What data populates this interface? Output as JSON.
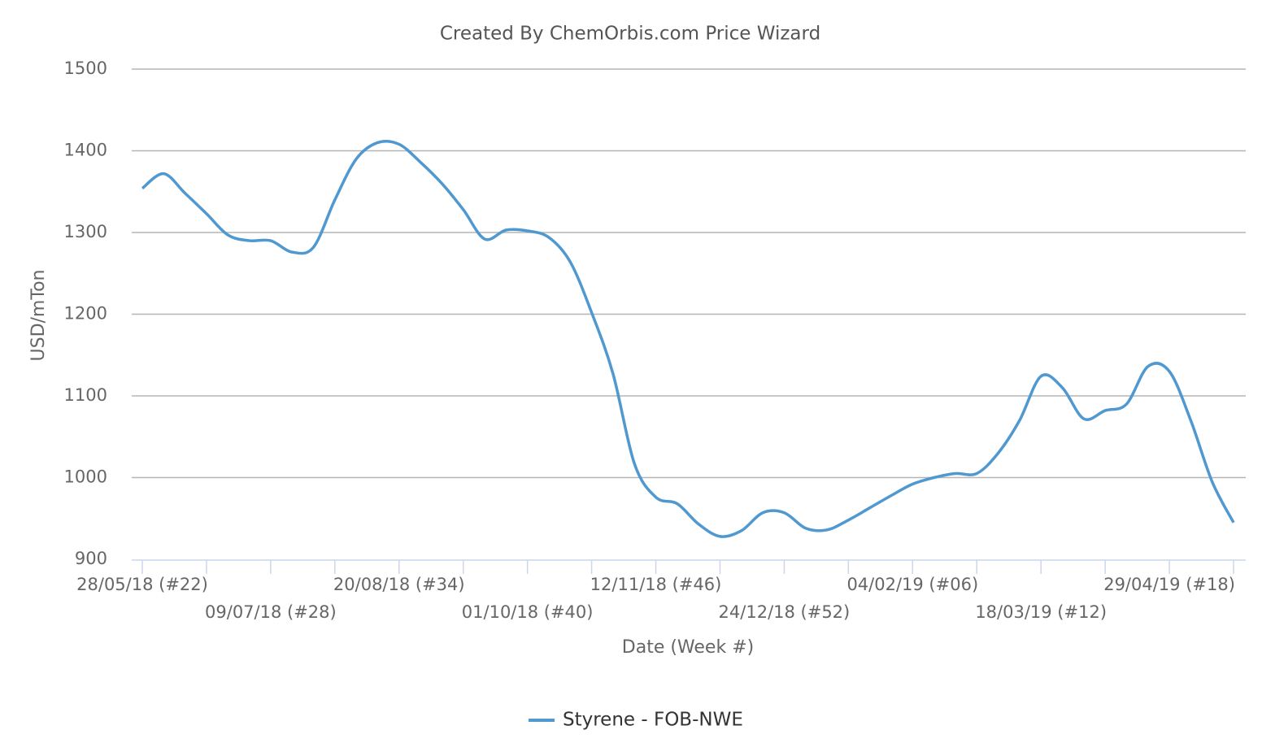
{
  "chart_data": {
    "type": "line",
    "title": "Created By ChemOrbis.com Price Wizard",
    "x_label": "Date (Week #)",
    "y_label": "USD/mTon",
    "categories": [
      "28/05/18 (#22)",
      null,
      null,
      null,
      null,
      null,
      "09/07/18 (#28)",
      null,
      null,
      null,
      null,
      null,
      "20/08/18 (#34)",
      null,
      null,
      null,
      null,
      null,
      "01/10/18 (#40)",
      null,
      null,
      null,
      null,
      null,
      "12/11/18 (#46)",
      null,
      null,
      null,
      null,
      null,
      "24/12/18 (#52)",
      null,
      null,
      null,
      null,
      null,
      "04/02/19 (#06)",
      null,
      null,
      null,
      null,
      null,
      "18/03/19 (#12)",
      null,
      null,
      null,
      null,
      null,
      "29/04/19 (#18)",
      null,
      null,
      null
    ],
    "series": [
      {
        "name": "Styrene - FOB-NWE",
        "color": "#4f98d0",
        "values": [
          1354,
          1372,
          1348,
          1323,
          1297,
          1290,
          1290,
          1276,
          1282,
          1340,
          1390,
          1410,
          1408,
          1386,
          1360,
          1328,
          1292,
          1303,
          1302,
          1294,
          1264,
          1202,
          1127,
          1017,
          976,
          968,
          943,
          928,
          935,
          957,
          957,
          938,
          936,
          948,
          963,
          978,
          992,
          1000,
          1005,
          1005,
          1030,
          1070,
          1124,
          1110,
          1072,
          1082,
          1090,
          1136,
          1130,
          1070,
          995,
          945
        ]
      }
    ],
    "ylim": [
      900,
      1500
    ],
    "yticks": [
      900,
      1000,
      1100,
      1200,
      1300,
      1400,
      1500
    ],
    "grid": true,
    "legend": "bottom"
  }
}
